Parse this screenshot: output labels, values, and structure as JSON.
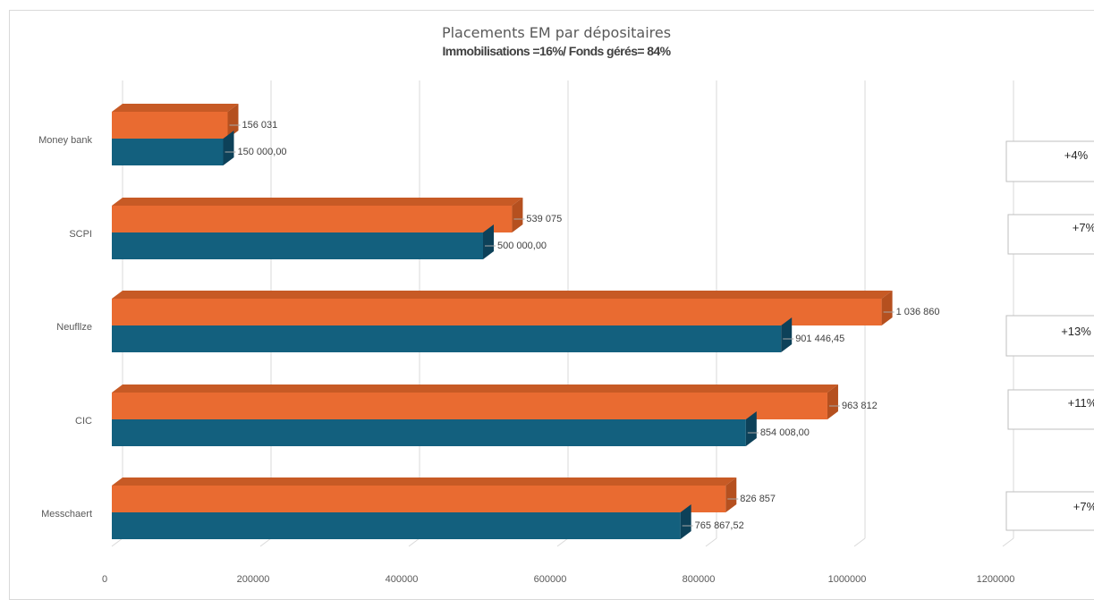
{
  "chart_data": {
    "type": "bar",
    "orientation": "horizontal",
    "style": "3d-clustered",
    "title": "Placements EM par dépositaires",
    "subtitle": "Immobilisations =16%/ Fonds gérés= 84%",
    "categories": [
      "Moneybank",
      "SCPI",
      "Neuflize",
      "CIC",
      "Messchaert"
    ],
    "category_labels": [
      "Money bank",
      "SCPI",
      "Neufllze",
      "CIC",
      "Messchaert"
    ],
    "series": [
      {
        "color": "#e96b31",
        "values": [
          156031,
          539075,
          1036860,
          963812,
          826857
        ],
        "data_labels": [
          "156 031",
          "539 075",
          "1 036 860",
          "963 812",
          "826 857"
        ]
      },
      {
        "color": "#13607e",
        "values": [
          150000,
          500000,
          901446.45,
          854008,
          765867.52
        ],
        "data_labels": [
          "150 000,00",
          "500 000,00",
          "901 446,45",
          "854 008,00",
          "765 867,52"
        ]
      }
    ],
    "xlim": [
      0,
      1200000
    ],
    "xticks": [
      0,
      200000,
      400000,
      600000,
      800000,
      1000000,
      1200000
    ],
    "xtick_labels": [
      "0",
      "200000",
      "400000",
      "600000",
      "800000",
      "1000000",
      "1200000"
    ],
    "grid": true,
    "legend": "none",
    "annotations": [
      "+4%",
      "+7%",
      "+13%",
      "+11%",
      "+7%"
    ]
  }
}
